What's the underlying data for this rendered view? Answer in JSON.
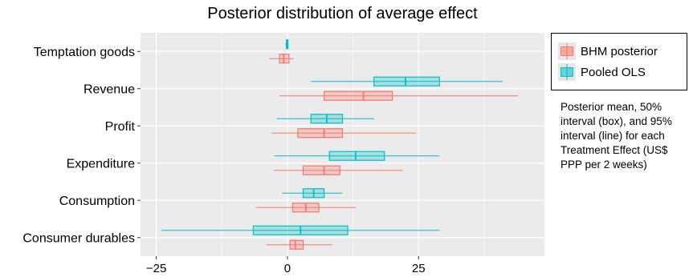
{
  "chart_data": {
    "type": "boxplot",
    "title": "Posterior distribution of average effect",
    "xlabel": "",
    "ylabel": "",
    "xlim": [
      -28,
      49
    ],
    "x_ticks": [
      -25,
      0,
      25
    ],
    "x_tick_labels": [
      "−25",
      "0",
      "25"
    ],
    "grid": true,
    "legend_position": "right",
    "categories": [
      "Temptation goods",
      "Revenue",
      "Profit",
      "Expenditure",
      "Consumption",
      "Consumer durables"
    ],
    "series": [
      {
        "name": "BHM posterior",
        "color": "#F8766D",
        "values": [
          {
            "category": "Temptation goods",
            "lo": -3.5,
            "q1": -1.5,
            "mean": -0.7,
            "q3": 0.3,
            "hi": 1.2
          },
          {
            "category": "Revenue",
            "lo": -1.5,
            "q1": 7,
            "mean": 14.5,
            "q3": 20,
            "hi": 44
          },
          {
            "category": "Profit",
            "lo": -3,
            "q1": 2,
            "mean": 7,
            "q3": 10.5,
            "hi": 24.5
          },
          {
            "category": "Expenditure",
            "lo": -2.5,
            "q1": 3,
            "mean": 7,
            "q3": 10,
            "hi": 22
          },
          {
            "category": "Consumption",
            "lo": -6,
            "q1": 1,
            "mean": 3.5,
            "q3": 6,
            "hi": 13
          },
          {
            "category": "Consumer durables",
            "lo": -4,
            "q1": 0.5,
            "mean": 1.5,
            "q3": 3,
            "hi": 8.5
          }
        ]
      },
      {
        "name": "Pooled OLS",
        "color": "#00BFC4",
        "values": [
          {
            "category": "Temptation goods",
            "lo": -0.4,
            "q1": -0.2,
            "mean": -0.1,
            "q3": 0.1,
            "hi": 0.2
          },
          {
            "category": "Revenue",
            "lo": 4.5,
            "q1": 16.5,
            "mean": 22.5,
            "q3": 29,
            "hi": 41
          },
          {
            "category": "Profit",
            "lo": -2,
            "q1": 4.5,
            "mean": 7.5,
            "q3": 10.5,
            "hi": 16.5
          },
          {
            "category": "Expenditure",
            "lo": -2.5,
            "q1": 8,
            "mean": 13,
            "q3": 18.5,
            "hi": 29
          },
          {
            "category": "Consumption",
            "lo": -1,
            "q1": 3,
            "mean": 5,
            "q3": 7,
            "hi": 10.5
          },
          {
            "category": "Consumer durables",
            "lo": -24,
            "q1": -6.5,
            "mean": 2.5,
            "q3": 11.5,
            "hi": 29
          }
        ]
      }
    ],
    "annotation": "Posterior mean, 50% interval (box), and 95% interval (line) for each Treatment Effect (US$ PPP per 2 weeks)"
  }
}
